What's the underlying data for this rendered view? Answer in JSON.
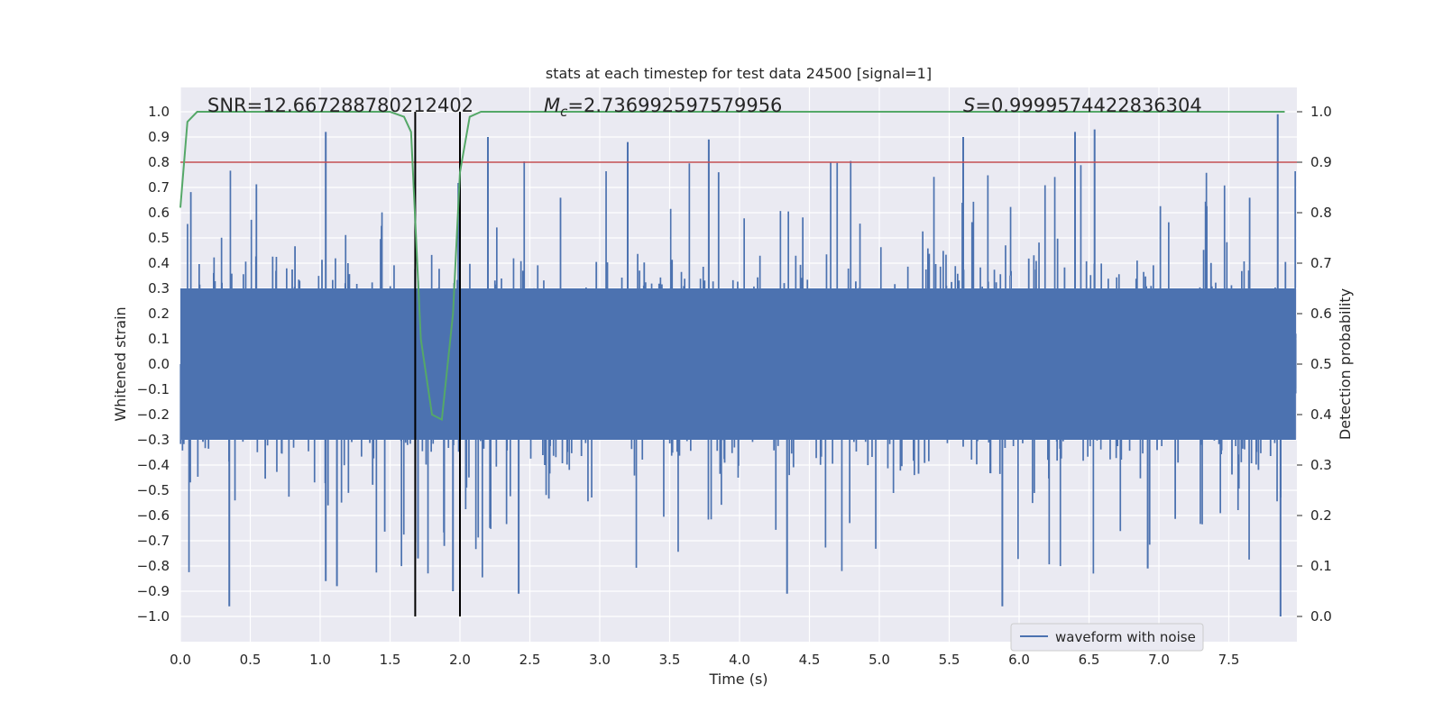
{
  "chart_data": {
    "type": "line",
    "title": "stats at each timestep for test data 24500 [signal=1]",
    "xlabel": "Time (s)",
    "ylabel": "Whitened strain",
    "ylabel_right": "Detection probability",
    "xlim": [
      0.0,
      8.0
    ],
    "ylim": [
      -1.1,
      1.1
    ],
    "ylim_right": [
      -0.05,
      1.05
    ],
    "xticks": [
      0.0,
      0.5,
      1.0,
      1.5,
      2.0,
      2.5,
      3.0,
      3.5,
      4.0,
      4.5,
      5.0,
      5.5,
      6.0,
      6.5,
      7.0,
      7.5
    ],
    "xtick_labels": [
      "0.0",
      "0.5",
      "1.0",
      "1.5",
      "2.0",
      "2.5",
      "3.0",
      "3.5",
      "4.0",
      "4.5",
      "5.0",
      "5.5",
      "6.0",
      "6.5",
      "7.0",
      "7.5"
    ],
    "yticks": [
      1.0,
      0.9,
      0.8,
      0.7,
      0.6,
      0.5,
      0.4,
      0.3,
      0.2,
      0.1,
      0.0,
      -0.1,
      -0.2,
      -0.3,
      -0.4,
      -0.5,
      -0.6,
      -0.7,
      -0.8,
      -0.9,
      -1.0
    ],
    "ytick_labels": [
      "1.0",
      "0.9",
      "0.8",
      "0.7",
      "0.6",
      "0.5",
      "0.4",
      "0.3",
      "0.2",
      "0.1",
      "0.0",
      "−0.1",
      "−0.2",
      "−0.3",
      "−0.4",
      "−0.5",
      "−0.6",
      "−0.7",
      "−0.8",
      "−0.9",
      "−1.0"
    ],
    "yticks_right": [
      1.0,
      0.9,
      0.8,
      0.7,
      0.6,
      0.5,
      0.4,
      0.3,
      0.2,
      0.1,
      0.0
    ],
    "ytick_labels_right": [
      "1.0",
      "0.9",
      "0.8",
      "0.7",
      "0.6",
      "0.5",
      "0.4",
      "0.3",
      "0.2",
      "0.1",
      "0.0"
    ],
    "annotations": {
      "snr": "SNR=12.667288780212402",
      "mc_symbol": "M",
      "mc_sub": "c",
      "mc_value": "=2.736992597579956",
      "s_symbol": "S",
      "s_value": "=0.9999574422836304"
    },
    "threshold": {
      "name": "threshold",
      "value": 0.9,
      "color": "#c44e52"
    },
    "vertical_lines": [
      {
        "name": "merger-window-start",
        "x": 1.68,
        "y_range": [
          -1.0,
          1.0
        ],
        "color": "#000000"
      },
      {
        "name": "merger-window-end",
        "x": 2.0,
        "y_range": [
          -1.0,
          1.0
        ],
        "color": "#000000"
      }
    ],
    "series": [
      {
        "name": "waveform with noise",
        "axis": "left",
        "color": "#4c72b0",
        "style": "dense noise",
        "envelope_typical": [
          -0.4,
          0.4
        ],
        "peaks": [
          {
            "x": 0.35,
            "y": -0.96
          },
          {
            "x": 1.04,
            "y": 0.92
          },
          {
            "x": 1.04,
            "y": -0.86
          },
          {
            "x": 1.12,
            "y": -0.88
          },
          {
            "x": 1.7,
            "y": -0.77
          },
          {
            "x": 1.95,
            "y": -0.9
          },
          {
            "x": 2.2,
            "y": 0.9
          },
          {
            "x": 2.42,
            "y": -0.91
          },
          {
            "x": 3.2,
            "y": 0.88
          },
          {
            "x": 3.78,
            "y": 0.89
          },
          {
            "x": 4.34,
            "y": -0.91
          },
          {
            "x": 5.6,
            "y": 0.9
          },
          {
            "x": 5.88,
            "y": -0.96
          },
          {
            "x": 6.4,
            "y": 0.92
          },
          {
            "x": 6.54,
            "y": 0.93
          },
          {
            "x": 6.92,
            "y": -0.81
          },
          {
            "x": 7.85,
            "y": 0.99
          },
          {
            "x": 7.87,
            "y": -1.0
          }
        ]
      },
      {
        "name": "detection probability",
        "axis": "right",
        "color": "#55a868",
        "x": [
          0.0,
          0.05,
          0.12,
          0.3,
          1.0,
          1.5,
          1.6,
          1.65,
          1.72,
          1.8,
          1.87,
          1.95,
          2.0,
          2.07,
          2.15,
          7.9
        ],
        "y": [
          0.81,
          0.98,
          1.0,
          1.0,
          1.0,
          1.0,
          0.99,
          0.96,
          0.55,
          0.4,
          0.39,
          0.6,
          0.88,
          0.99,
          1.0,
          1.0
        ]
      }
    ],
    "legend": {
      "label": "waveform with noise",
      "location": "lower-right"
    },
    "grid": true
  }
}
